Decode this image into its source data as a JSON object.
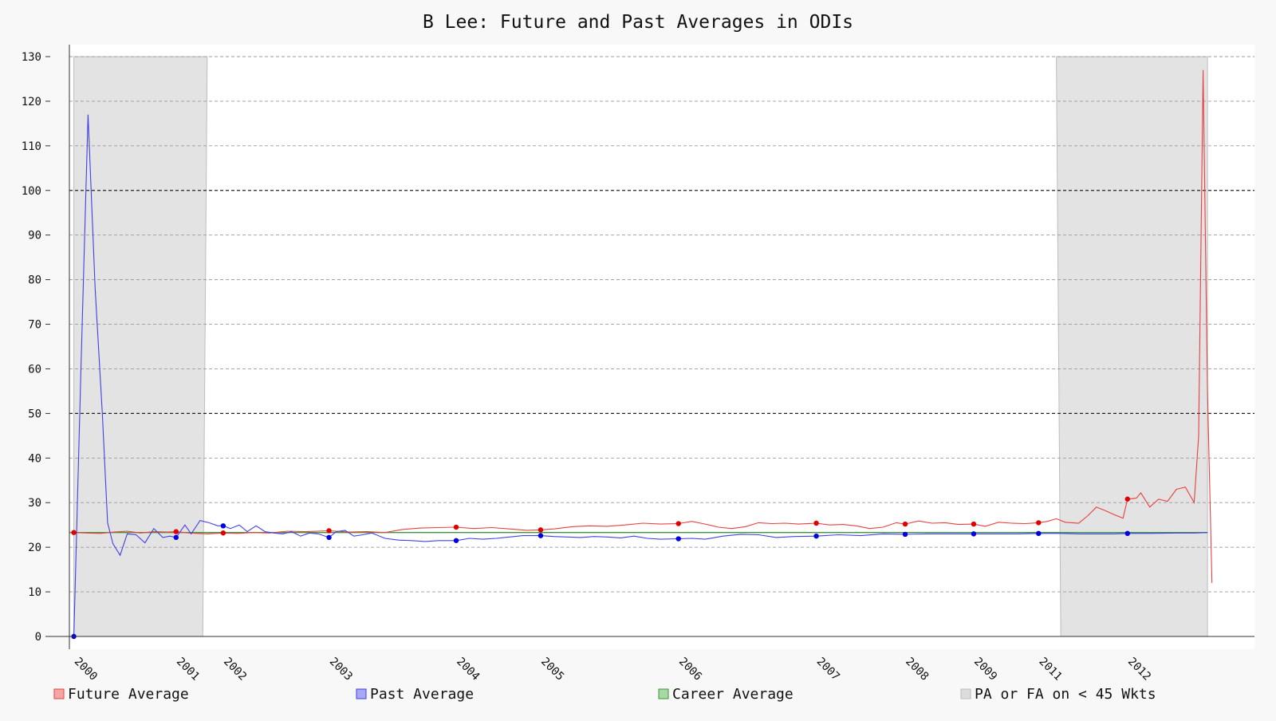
{
  "chart_data": {
    "type": "line",
    "title": "B Lee: Future and Past Averages in ODIs",
    "xlabel": "",
    "ylabel": "",
    "xlim": [
      1999.95,
      2013.0
    ],
    "ylim": [
      -2,
      132
    ],
    "yticks": [
      0,
      10,
      20,
      30,
      40,
      50,
      60,
      70,
      80,
      90,
      100,
      110,
      120,
      130
    ],
    "xticks": [
      {
        "label": "2000",
        "x": 2000.0
      },
      {
        "label": "2001",
        "x": 2001.15
      },
      {
        "label": "2002",
        "x": 2001.68
      },
      {
        "label": "2003",
        "x": 2002.87
      },
      {
        "label": "2004",
        "x": 2004.3
      },
      {
        "label": "2005",
        "x": 2005.25
      },
      {
        "label": "2006",
        "x": 2006.8
      },
      {
        "label": "2007",
        "x": 2008.35
      },
      {
        "label": "2008",
        "x": 2009.35
      },
      {
        "label": "2009",
        "x": 2010.12
      },
      {
        "label": "2011",
        "x": 2010.85
      },
      {
        "label": "2012",
        "x": 2011.85
      }
    ],
    "grid": true,
    "legend_position": "bottom",
    "colors": {
      "future": "#e84040",
      "past": "#4040e8",
      "career": "#3a9a3a",
      "shade": "#e3e3e3",
      "future_legend": "#f4a6a6",
      "past_legend": "#a8a8f4",
      "career_legend": "#a8d8a8",
      "shade_legend": "#dcdcdc"
    },
    "legend": [
      {
        "key": "future",
        "label": "Future Average"
      },
      {
        "key": "past",
        "label": "Past Average"
      },
      {
        "key": "career",
        "label": "Career Average"
      },
      {
        "key": "shade",
        "label": "PA or FA on < 45 Wkts"
      }
    ],
    "shaded_regions": [
      {
        "x_top": [
          2000.0,
          2001.5
        ],
        "x_bottom": [
          2000.0,
          2001.45
        ]
      },
      {
        "x_top": [
          2011.05,
          2012.75
        ],
        "x_bottom": [
          2011.1,
          2012.75
        ]
      }
    ],
    "career_average": 23.3,
    "series": [
      {
        "name": "Future Average",
        "key": "future",
        "x": [
          2000.0,
          2000.15,
          2000.3,
          2000.45,
          2000.6,
          2000.75,
          2000.9,
          2001.05,
          2001.15,
          2001.3,
          2001.5,
          2001.68,
          2001.85,
          2002.0,
          2002.2,
          2002.4,
          2002.6,
          2002.87,
          2003.1,
          2003.3,
          2003.5,
          2003.7,
          2003.9,
          2004.1,
          2004.3,
          2004.5,
          2004.7,
          2004.9,
          2005.1,
          2005.25,
          2005.4,
          2005.6,
          2005.8,
          2006.0,
          2006.2,
          2006.4,
          2006.6,
          2006.8,
          2006.95,
          2007.1,
          2007.25,
          2007.4,
          2007.55,
          2007.7,
          2007.85,
          2008.0,
          2008.15,
          2008.35,
          2008.5,
          2008.65,
          2008.8,
          2008.95,
          2009.1,
          2009.25,
          2009.35,
          2009.5,
          2009.65,
          2009.8,
          2009.95,
          2010.12,
          2010.25,
          2010.4,
          2010.55,
          2010.7,
          2010.85,
          2010.95,
          2011.05,
          2011.15,
          2011.3,
          2011.4,
          2011.5,
          2011.6,
          2011.7,
          2011.8,
          2011.85,
          2011.95,
          2012.0,
          2012.1,
          2012.2,
          2012.3,
          2012.4,
          2012.5,
          2012.6,
          2012.65,
          2012.7,
          2012.75,
          2012.8
        ],
        "values": [
          23.3,
          23.2,
          23.1,
          23.4,
          23.6,
          23.2,
          23.5,
          23.4,
          23.5,
          23.2,
          23.0,
          23.2,
          23.1,
          23.3,
          23.2,
          23.6,
          23.5,
          23.7,
          23.4,
          23.5,
          23.3,
          24.0,
          24.3,
          24.4,
          24.5,
          24.2,
          24.4,
          24.1,
          23.8,
          23.9,
          24.1,
          24.6,
          24.8,
          24.7,
          25.0,
          25.4,
          25.2,
          25.3,
          25.8,
          25.2,
          24.5,
          24.2,
          24.6,
          25.5,
          25.3,
          25.4,
          25.2,
          25.4,
          25.0,
          25.1,
          24.8,
          24.2,
          24.5,
          25.5,
          25.2,
          25.9,
          25.4,
          25.5,
          25.1,
          25.2,
          24.7,
          25.6,
          25.4,
          25.3,
          25.5,
          25.8,
          26.4,
          25.6,
          25.4,
          27.0,
          29.0,
          28.2,
          27.3,
          26.5,
          30.8,
          31.0,
          32.2,
          29.0,
          30.8,
          30.3,
          33.0,
          33.5,
          30.0,
          45.0,
          127.0,
          55.0,
          12.0
        ]
      },
      {
        "name": "Past Average",
        "key": "past",
        "x": [
          2000.0,
          2000.08,
          2000.16,
          2000.24,
          2000.32,
          2000.38,
          2000.44,
          2000.52,
          2000.6,
          2000.7,
          2000.8,
          2000.9,
          2001.0,
          2001.08,
          2001.15,
          2001.25,
          2001.32,
          2001.42,
          2001.52,
          2001.62,
          2001.68,
          2001.76,
          2001.86,
          2001.95,
          2002.05,
          2002.15,
          2002.25,
          2002.35,
          2002.45,
          2002.55,
          2002.65,
          2002.75,
          2002.87,
          2002.95,
          2003.05,
          2003.15,
          2003.25,
          2003.35,
          2003.5,
          2003.65,
          2003.8,
          2003.95,
          2004.1,
          2004.3,
          2004.45,
          2004.6,
          2004.75,
          2004.9,
          2005.05,
          2005.25,
          2005.4,
          2005.55,
          2005.7,
          2005.85,
          2006.0,
          2006.15,
          2006.3,
          2006.45,
          2006.6,
          2006.8,
          2006.95,
          2007.1,
          2007.3,
          2007.5,
          2007.7,
          2007.9,
          2008.1,
          2008.35,
          2008.6,
          2008.85,
          2009.1,
          2009.35,
          2009.6,
          2009.85,
          2010.12,
          2010.4,
          2010.6,
          2010.85,
          2011.1,
          2011.3,
          2011.5,
          2011.7,
          2011.85,
          2012.1,
          2012.4,
          2012.6,
          2012.75
        ],
        "values": [
          0,
          60.0,
          117.0,
          78.0,
          50.0,
          25.5,
          20.8,
          18.2,
          23.0,
          22.8,
          21.0,
          24.2,
          22.2,
          22.5,
          22.2,
          25.0,
          23.0,
          26.0,
          25.5,
          24.8,
          24.8,
          24.2,
          25.0,
          23.5,
          24.8,
          23.5,
          23.2,
          23.0,
          23.5,
          22.5,
          23.2,
          23.0,
          22.2,
          23.5,
          23.8,
          22.5,
          22.8,
          23.2,
          22.0,
          21.6,
          21.5,
          21.3,
          21.5,
          21.5,
          22.0,
          21.8,
          22.0,
          22.3,
          22.6,
          22.6,
          22.4,
          22.3,
          22.2,
          22.4,
          22.3,
          22.1,
          22.5,
          22.0,
          21.8,
          21.9,
          22.0,
          21.8,
          22.5,
          22.9,
          22.8,
          22.2,
          22.4,
          22.5,
          22.8,
          22.6,
          23.0,
          22.9,
          23.0,
          23.0,
          23.0,
          23.0,
          23.0,
          23.1,
          23.1,
          23.0,
          23.0,
          23.0,
          23.1,
          23.1,
          23.2,
          23.2,
          23.3
        ]
      }
    ],
    "markers": {
      "future": [
        [
          2000.0,
          23.3
        ],
        [
          2001.15,
          23.5
        ],
        [
          2001.68,
          23.2
        ],
        [
          2002.87,
          23.7
        ],
        [
          2004.3,
          24.5
        ],
        [
          2005.25,
          23.9
        ],
        [
          2006.8,
          25.3
        ],
        [
          2008.35,
          25.4
        ],
        [
          2009.35,
          25.2
        ],
        [
          2010.12,
          25.2
        ],
        [
          2010.85,
          25.5
        ],
        [
          2011.85,
          30.8
        ]
      ],
      "past": [
        [
          2000.0,
          0
        ],
        [
          2001.15,
          22.2
        ],
        [
          2001.68,
          24.8
        ],
        [
          2002.87,
          22.2
        ],
        [
          2004.3,
          21.5
        ],
        [
          2005.25,
          22.6
        ],
        [
          2006.8,
          21.9
        ],
        [
          2008.35,
          22.5
        ],
        [
          2009.35,
          22.9
        ],
        [
          2010.12,
          23.0
        ],
        [
          2010.85,
          23.1
        ],
        [
          2011.85,
          23.1
        ]
      ]
    }
  }
}
